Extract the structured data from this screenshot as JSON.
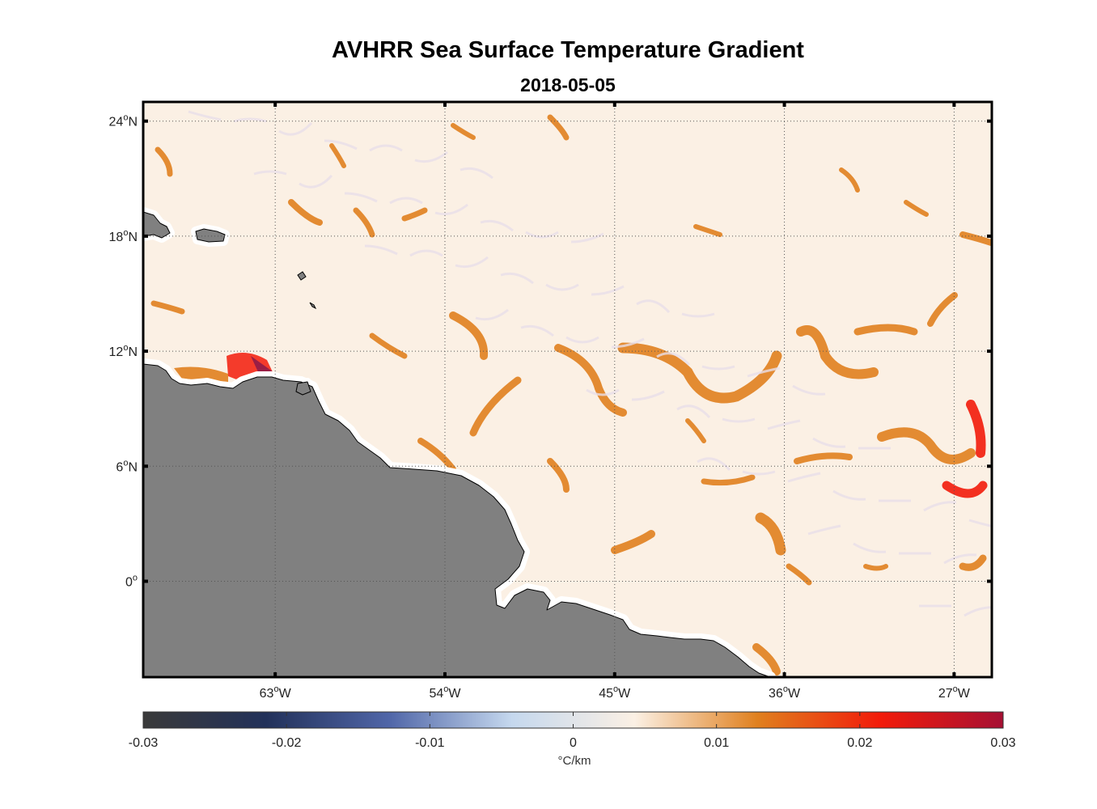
{
  "chart_data": {
    "type": "heatmap",
    "title": "AVHRR Sea Surface Temperature Gradient",
    "subtitle": "2018-05-05",
    "x_ticks": [
      {
        "lon": -63,
        "deg": "63",
        "dir": "W"
      },
      {
        "lon": -54,
        "deg": "54",
        "dir": "W"
      },
      {
        "lon": -45,
        "deg": "45",
        "dir": "W"
      },
      {
        "lon": -36,
        "deg": "36",
        "dir": "W"
      },
      {
        "lon": -27,
        "deg": "27",
        "dir": "W"
      }
    ],
    "y_ticks": [
      {
        "lat": 24,
        "deg": "24",
        "dir": "N"
      },
      {
        "lat": 18,
        "deg": "18",
        "dir": "N"
      },
      {
        "lat": 12,
        "deg": "12",
        "dir": "N"
      },
      {
        "lat": 6,
        "deg": "6",
        "dir": "N"
      },
      {
        "lat": 0,
        "deg": "0",
        "dir": ""
      }
    ],
    "xlim": [
      -70,
      -25
    ],
    "ylim": [
      -5,
      25
    ],
    "grid": true,
    "colorbar": {
      "range": [
        -0.03,
        0.03
      ],
      "ticks": [
        "-0.03",
        "-0.02",
        "-0.01",
        "0",
        "0.01",
        "0.02",
        "0.03"
      ],
      "label": "°C/km",
      "colors": [
        "#3a3a3a",
        "#22315a",
        "#5066a8",
        "#c5d8ee",
        "#fbf0e4",
        "#e0801e",
        "#f21b0a",
        "#a61033"
      ]
    },
    "land_color": "#808080",
    "ocean_background_color": "#fbf0e4"
  }
}
